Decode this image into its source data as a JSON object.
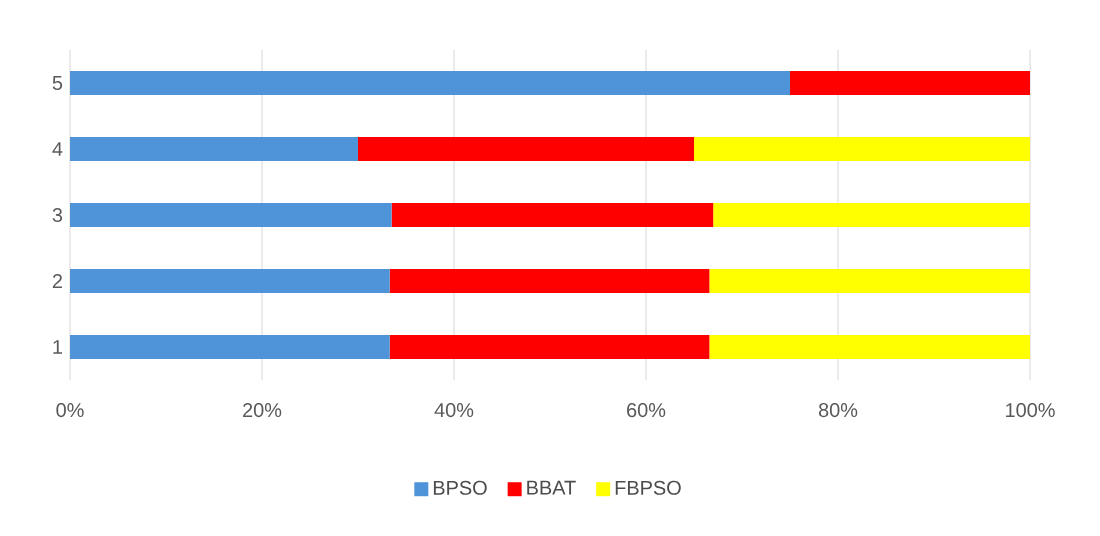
{
  "chart_data": {
    "type": "bar",
    "orientation": "horizontal",
    "stacked": true,
    "categories": [
      "5",
      "4",
      "3",
      "2",
      "1"
    ],
    "series": [
      {
        "name": "BPSO",
        "color": "#4f94d8",
        "values": [
          75,
          30,
          33.5,
          33.3,
          33.3
        ]
      },
      {
        "name": "BBAT",
        "color": "#ff0000",
        "values": [
          25,
          35,
          33.5,
          33.3,
          33.3
        ]
      },
      {
        "name": "FBPSO",
        "color": "#ffff00",
        "values": [
          0,
          35,
          33,
          33.4,
          33.4
        ]
      }
    ],
    "xlim": [
      0,
      100
    ],
    "xticks": [
      {
        "value": 0,
        "label": "0%"
      },
      {
        "value": 20,
        "label": "20%"
      },
      {
        "value": 40,
        "label": "40%"
      },
      {
        "value": 60,
        "label": "60%"
      },
      {
        "value": 80,
        "label": "80%"
      },
      {
        "value": 100,
        "label": "100%"
      }
    ],
    "grid": "x",
    "legend": "bottom"
  }
}
